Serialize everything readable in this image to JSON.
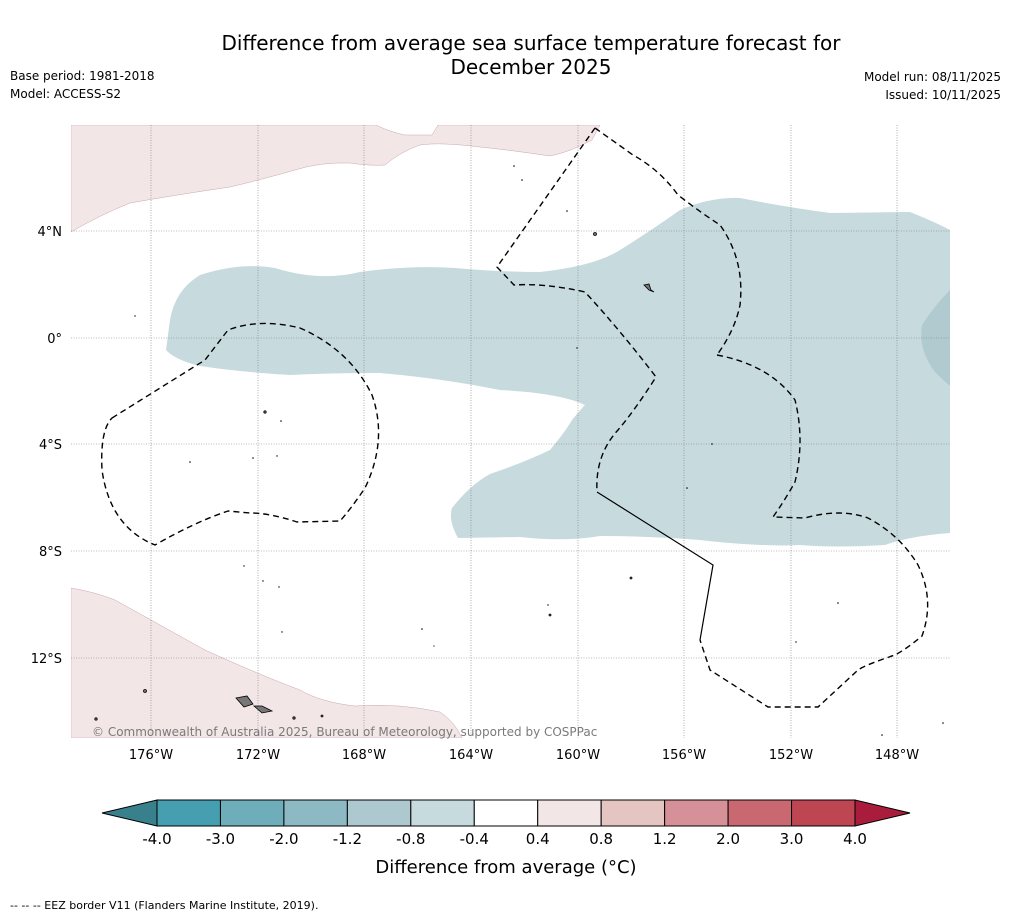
{
  "header": {
    "title_line1": "Difference from average sea surface temperature forecast for",
    "title_line2": "December 2025",
    "base_period": "Base period: 1981-2018",
    "model": "Model: ACCESS-S2",
    "model_run": "Model run: 08/11/2025",
    "issued": "Issued: 10/11/2025"
  },
  "map": {
    "lat_labels": [
      "4°N",
      "0°",
      "4°S",
      "8°S",
      "12°S"
    ],
    "lon_labels": [
      "176°W",
      "172°W",
      "168°W",
      "164°W",
      "160°W",
      "156°W",
      "152°W",
      "148°W"
    ],
    "copyright": "© Commonwealth of Australia 2025, Bureau of Meteorology, supported by COSPPac",
    "colors": {
      "cool_light": "#c7dade",
      "cool_mid": "#b0cad0",
      "warm_light": "#f3e6e7"
    }
  },
  "colorbar": {
    "title": "Difference from average (°C)",
    "labels": [
      "-4.0",
      "-3.0",
      "-2.0",
      "-1.2",
      "-0.8",
      "-0.4",
      "0.4",
      "0.8",
      "1.2",
      "2.0",
      "3.0",
      "4.0"
    ],
    "colors": [
      "#469fb1",
      "#6eaebb",
      "#8cb9c3",
      "#adc8ce",
      "#c7dade",
      "#ffffff",
      "#f3e6e7",
      "#e5c5c2",
      "#d69097",
      "#c96871",
      "#bd4652"
    ],
    "extend_low_color": "#37808c",
    "extend_high_color": "#a91c3c"
  },
  "footnote": "-- -- -- EEZ border V11 (Flanders Marine Institute, 2019)."
}
